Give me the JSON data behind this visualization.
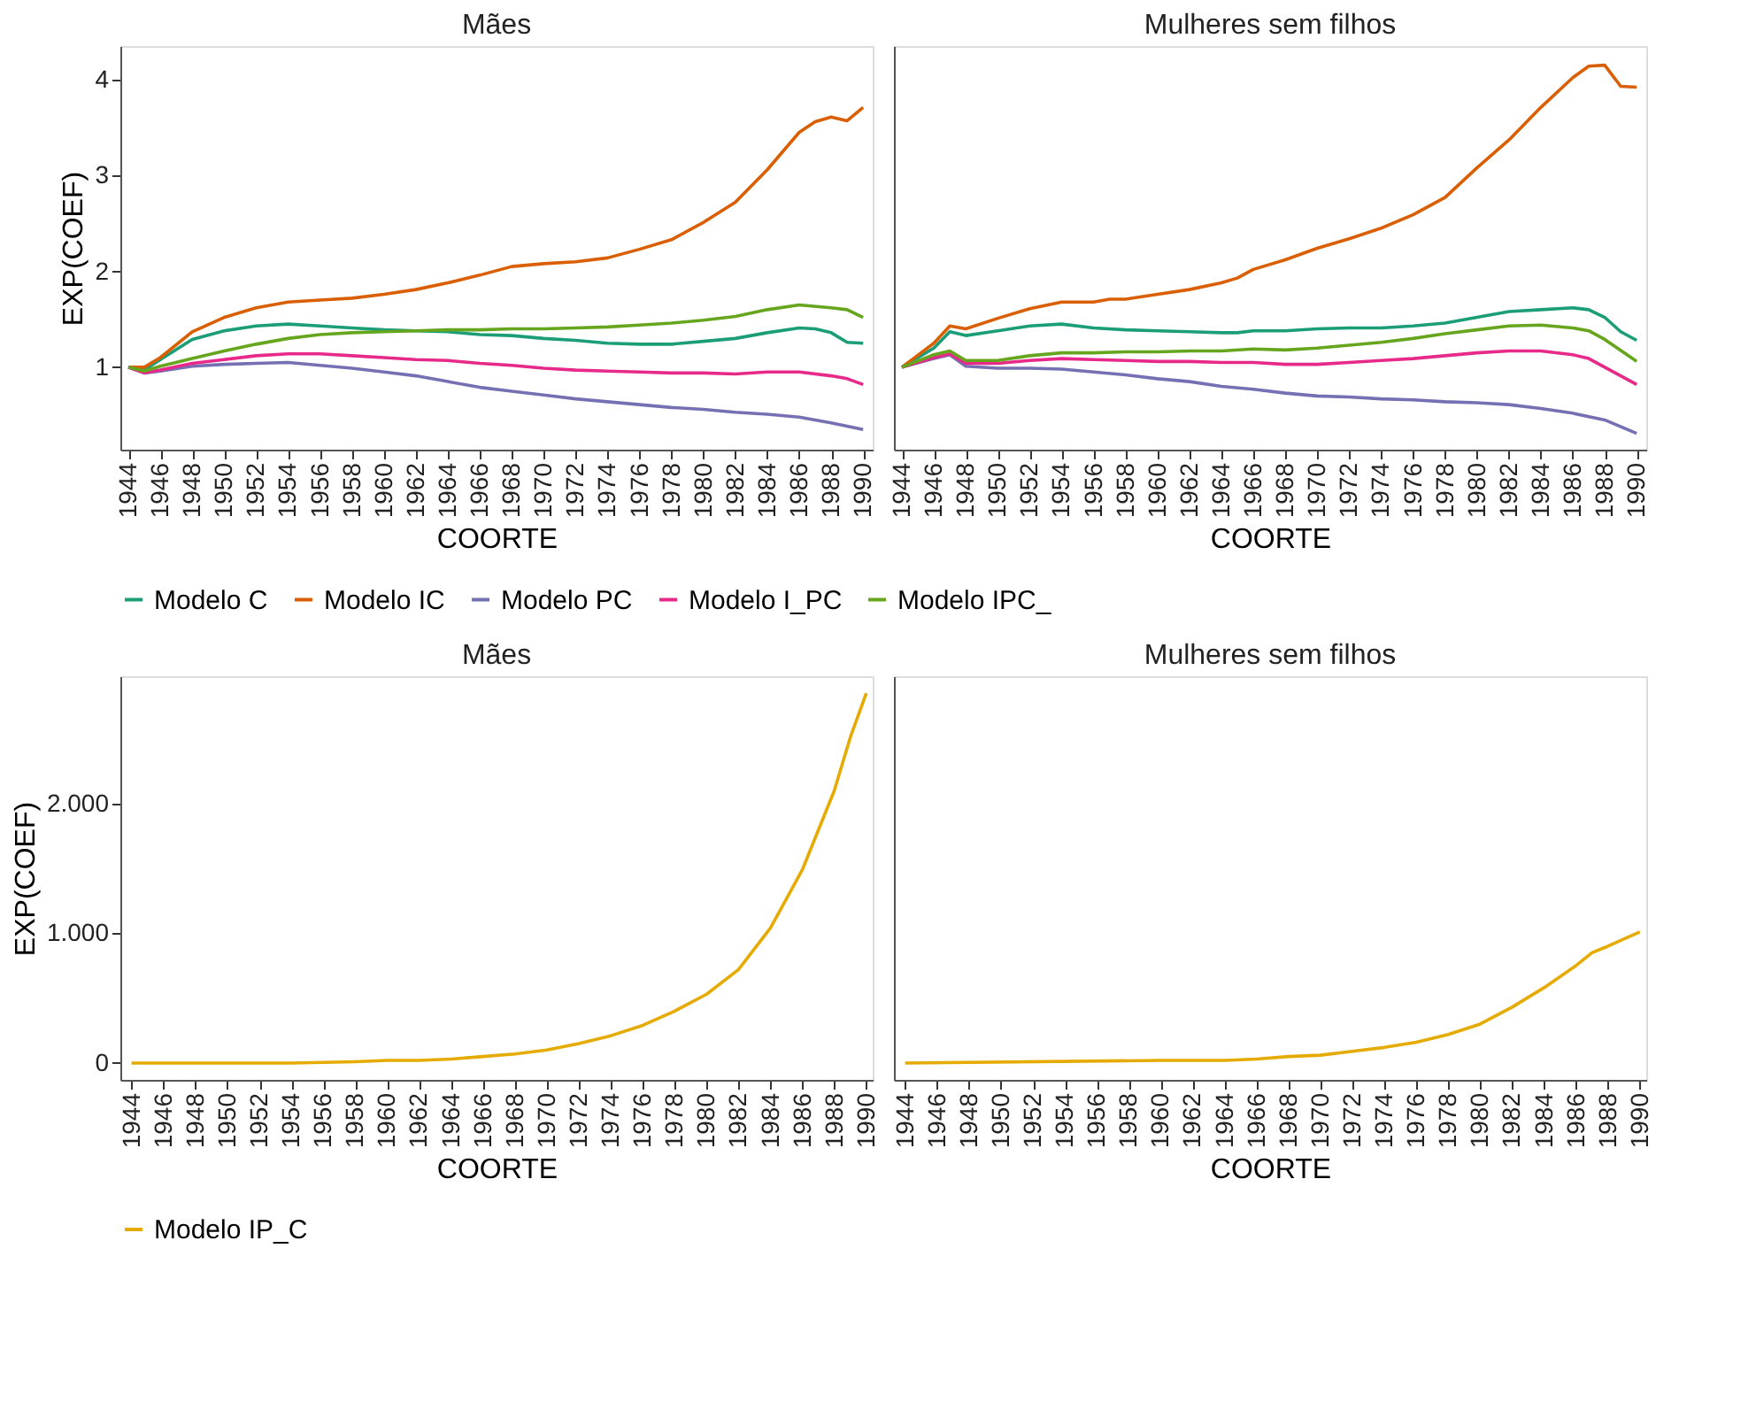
{
  "chart_data": [
    {
      "type": "line",
      "title": "Mães",
      "xlabel": "COORTE",
      "ylabel": "EXP(COEF)",
      "xlim": [
        1943.5,
        1990.6
      ],
      "ylim": [
        0.14,
        4.35
      ],
      "xticks": [
        1944,
        1946,
        1948,
        1950,
        1952,
        1954,
        1956,
        1958,
        1960,
        1962,
        1964,
        1966,
        1968,
        1970,
        1972,
        1974,
        1976,
        1978,
        1980,
        1982,
        1984,
        1986,
        1988,
        1990
      ],
      "yticks": [
        1,
        2,
        3,
        4
      ],
      "grid": false,
      "legend": "bottom",
      "series": [
        {
          "name": "Modelo C",
          "color": "#1b9e77",
          "x": [
            1944,
            1945,
            1946,
            1948,
            1950,
            1952,
            1954,
            1956,
            1958,
            1960,
            1962,
            1964,
            1966,
            1968,
            1970,
            1972,
            1974,
            1976,
            1978,
            1980,
            1982,
            1984,
            1986,
            1987,
            1988,
            1989,
            1990
          ],
          "values": [
            1.0,
            0.97,
            1.08,
            1.29,
            1.38,
            1.43,
            1.45,
            1.43,
            1.41,
            1.39,
            1.38,
            1.37,
            1.34,
            1.33,
            1.3,
            1.28,
            1.25,
            1.24,
            1.24,
            1.27,
            1.3,
            1.36,
            1.41,
            1.4,
            1.36,
            1.26,
            1.25
          ]
        },
        {
          "name": "Modelo IC",
          "color": "#d95f02",
          "x": [
            1944,
            1945,
            1946,
            1948,
            1950,
            1952,
            1954,
            1956,
            1958,
            1960,
            1962,
            1964,
            1966,
            1968,
            1970,
            1972,
            1974,
            1976,
            1978,
            1980,
            1982,
            1984,
            1986,
            1987,
            1988,
            1989,
            1990
          ],
          "values": [
            1.0,
            1.0,
            1.1,
            1.37,
            1.52,
            1.62,
            1.68,
            1.7,
            1.72,
            1.76,
            1.81,
            1.88,
            1.96,
            2.05,
            2.08,
            2.1,
            2.14,
            2.23,
            2.33,
            2.51,
            2.72,
            3.06,
            3.45,
            3.56,
            3.61,
            3.57,
            3.71
          ]
        },
        {
          "name": "Modelo PC",
          "color": "#7570b3",
          "x": [
            1944,
            1945,
            1946,
            1948,
            1950,
            1952,
            1954,
            1956,
            1958,
            1960,
            1962,
            1964,
            1966,
            1968,
            1970,
            1972,
            1974,
            1976,
            1978,
            1980,
            1982,
            1984,
            1986,
            1988,
            1990
          ],
          "values": [
            1.0,
            0.94,
            0.96,
            1.01,
            1.03,
            1.04,
            1.05,
            1.02,
            0.99,
            0.95,
            0.91,
            0.85,
            0.79,
            0.75,
            0.71,
            0.67,
            0.64,
            0.61,
            0.58,
            0.56,
            0.53,
            0.51,
            0.48,
            0.42,
            0.35
          ]
        },
        {
          "name": "Modelo I_PC",
          "color": "#e7298a",
          "x": [
            1944,
            1945,
            1946,
            1948,
            1950,
            1952,
            1954,
            1956,
            1958,
            1960,
            1962,
            1964,
            1966,
            1968,
            1970,
            1972,
            1974,
            1976,
            1978,
            1980,
            1982,
            1984,
            1986,
            1988,
            1989,
            1990
          ],
          "values": [
            1.0,
            0.94,
            0.97,
            1.04,
            1.08,
            1.12,
            1.14,
            1.14,
            1.12,
            1.1,
            1.08,
            1.07,
            1.04,
            1.02,
            0.99,
            0.97,
            0.96,
            0.95,
            0.94,
            0.94,
            0.93,
            0.95,
            0.95,
            0.91,
            0.88,
            0.82
          ]
        },
        {
          "name": "Modelo IPC_",
          "color": "#66a61e",
          "x": [
            1944,
            1945,
            1946,
            1948,
            1950,
            1952,
            1954,
            1956,
            1958,
            1960,
            1962,
            1964,
            1966,
            1968,
            1970,
            1972,
            1974,
            1976,
            1978,
            1980,
            1982,
            1984,
            1986,
            1988,
            1989,
            1990
          ],
          "values": [
            1.0,
            0.96,
            1.01,
            1.09,
            1.17,
            1.24,
            1.3,
            1.34,
            1.36,
            1.37,
            1.38,
            1.39,
            1.39,
            1.4,
            1.4,
            1.41,
            1.42,
            1.44,
            1.46,
            1.49,
            1.53,
            1.6,
            1.65,
            1.62,
            1.6,
            1.52
          ]
        }
      ]
    },
    {
      "type": "line",
      "title": "Mulheres sem filhos",
      "xlabel": "COORTE",
      "xlim": [
        1943.5,
        1990.6
      ],
      "ylim": [
        0.14,
        4.35
      ],
      "xticks": [
        1944,
        1946,
        1948,
        1950,
        1952,
        1954,
        1956,
        1958,
        1960,
        1962,
        1964,
        1966,
        1968,
        1970,
        1972,
        1974,
        1976,
        1978,
        1980,
        1982,
        1984,
        1986,
        1988,
        1990
      ],
      "tick_labels": "x",
      "grid": false,
      "legend": "bottom",
      "series": [
        {
          "name": "Modelo C",
          "color": "#1b9e77",
          "x": [
            1944,
            1946,
            1947,
            1948,
            1950,
            1952,
            1954,
            1956,
            1958,
            1960,
            1962,
            1964,
            1965,
            1966,
            1968,
            1970,
            1972,
            1974,
            1976,
            1978,
            1980,
            1982,
            1984,
            1986,
            1987,
            1988,
            1989,
            1990
          ],
          "values": [
            1.0,
            1.2,
            1.37,
            1.33,
            1.38,
            1.43,
            1.45,
            1.41,
            1.39,
            1.38,
            1.37,
            1.36,
            1.36,
            1.38,
            1.38,
            1.4,
            1.41,
            1.41,
            1.43,
            1.46,
            1.52,
            1.58,
            1.6,
            1.62,
            1.6,
            1.52,
            1.37,
            1.28
          ]
        },
        {
          "name": "Modelo IC",
          "color": "#d95f02",
          "x": [
            1944,
            1946,
            1947,
            1948,
            1950,
            1952,
            1954,
            1956,
            1957,
            1958,
            1960,
            1962,
            1964,
            1965,
            1966,
            1968,
            1970,
            1972,
            1974,
            1976,
            1978,
            1980,
            1982,
            1984,
            1986,
            1987,
            1988,
            1989,
            1990
          ],
          "values": [
            1.0,
            1.25,
            1.43,
            1.4,
            1.51,
            1.61,
            1.68,
            1.68,
            1.71,
            1.71,
            1.76,
            1.81,
            1.88,
            1.93,
            2.02,
            2.12,
            2.24,
            2.34,
            2.45,
            2.59,
            2.77,
            3.08,
            3.37,
            3.71,
            4.02,
            4.14,
            4.15,
            3.93,
            3.92
          ]
        },
        {
          "name": "Modelo PC",
          "color": "#7570b3",
          "x": [
            1944,
            1946,
            1947,
            1948,
            1950,
            1952,
            1954,
            1956,
            1958,
            1960,
            1962,
            1964,
            1966,
            1968,
            1970,
            1972,
            1974,
            1976,
            1978,
            1980,
            1982,
            1984,
            1986,
            1988,
            1990
          ],
          "values": [
            1.0,
            1.09,
            1.13,
            1.01,
            0.99,
            0.99,
            0.98,
            0.95,
            0.92,
            0.88,
            0.85,
            0.8,
            0.77,
            0.73,
            0.7,
            0.69,
            0.67,
            0.66,
            0.64,
            0.63,
            0.61,
            0.57,
            0.52,
            0.45,
            0.31
          ]
        },
        {
          "name": "Modelo I_PC",
          "color": "#e7298a",
          "x": [
            1944,
            1946,
            1947,
            1948,
            1950,
            1952,
            1954,
            1956,
            1958,
            1960,
            1962,
            1964,
            1966,
            1968,
            1970,
            1972,
            1974,
            1976,
            1978,
            1980,
            1982,
            1984,
            1986,
            1987,
            1988,
            1990
          ],
          "values": [
            1.0,
            1.1,
            1.14,
            1.04,
            1.04,
            1.07,
            1.09,
            1.08,
            1.07,
            1.06,
            1.06,
            1.05,
            1.05,
            1.03,
            1.03,
            1.05,
            1.07,
            1.09,
            1.12,
            1.15,
            1.17,
            1.17,
            1.13,
            1.09,
            1.0,
            0.82
          ]
        },
        {
          "name": "Modelo IPC_",
          "color": "#66a61e",
          "x": [
            1944,
            1946,
            1947,
            1948,
            1950,
            1952,
            1954,
            1956,
            1958,
            1960,
            1962,
            1964,
            1966,
            1968,
            1970,
            1972,
            1974,
            1976,
            1978,
            1980,
            1982,
            1984,
            1986,
            1987,
            1988,
            1990
          ],
          "values": [
            1.0,
            1.13,
            1.17,
            1.07,
            1.07,
            1.12,
            1.15,
            1.15,
            1.16,
            1.16,
            1.17,
            1.17,
            1.19,
            1.18,
            1.2,
            1.23,
            1.26,
            1.3,
            1.35,
            1.39,
            1.43,
            1.44,
            1.41,
            1.38,
            1.29,
            1.06
          ]
        }
      ]
    },
    {
      "type": "line",
      "title": "Mães",
      "xlabel": "COORTE",
      "ylabel": "EXP(COEF)",
      "xlim": [
        1943.3,
        1990.4
      ],
      "ylim": [
        -130,
        2980
      ],
      "xticks": [
        1944,
        1946,
        1948,
        1950,
        1952,
        1954,
        1956,
        1958,
        1960,
        1962,
        1964,
        1966,
        1968,
        1970,
        1972,
        1974,
        1976,
        1978,
        1980,
        1982,
        1984,
        1986,
        1988,
        1990
      ],
      "yticks": [
        0,
        {
          "value": 1000,
          "label": "1.000"
        },
        {
          "value": 2000,
          "label": "2.000"
        }
      ],
      "grid": false,
      "legend": "bottom",
      "series": [
        {
          "name": "Modelo IP_C",
          "color": "#e6ab02",
          "x": [
            1944,
            1950,
            1954,
            1958,
            1960,
            1962,
            1964,
            1966,
            1968,
            1970,
            1972,
            1974,
            1976,
            1978,
            1980,
            1982,
            1984,
            1986,
            1988,
            1989,
            1990
          ],
          "values": [
            0,
            0,
            0,
            10,
            20,
            20,
            30,
            50,
            70,
            100,
            150,
            210,
            290,
            400,
            530,
            720,
            1040,
            1490,
            2100,
            2510,
            2850
          ]
        }
      ]
    },
    {
      "type": "line",
      "title": "Mulheres sem filhos",
      "xlabel": "COORTE",
      "xlim": [
        1943.3,
        1990.4
      ],
      "ylim": [
        -130,
        2980
      ],
      "xticks": [
        1944,
        1946,
        1948,
        1950,
        1952,
        1954,
        1956,
        1958,
        1960,
        1962,
        1964,
        1966,
        1968,
        1970,
        1972,
        1974,
        1976,
        1978,
        1980,
        1982,
        1984,
        1986,
        1988,
        1990
      ],
      "tick_labels": "x",
      "grid": false,
      "legend": "bottom",
      "series": [
        {
          "name": "Modelo IP_C",
          "color": "#e6ab02",
          "x": [
            1944,
            1960,
            1964,
            1966,
            1968,
            1970,
            1972,
            1974,
            1976,
            1978,
            1980,
            1982,
            1984,
            1986,
            1987,
            1988,
            1990
          ],
          "values": [
            0,
            20,
            20,
            30,
            50,
            60,
            90,
            120,
            160,
            220,
            300,
            430,
            580,
            750,
            850,
            900,
            1010
          ]
        }
      ]
    }
  ]
}
